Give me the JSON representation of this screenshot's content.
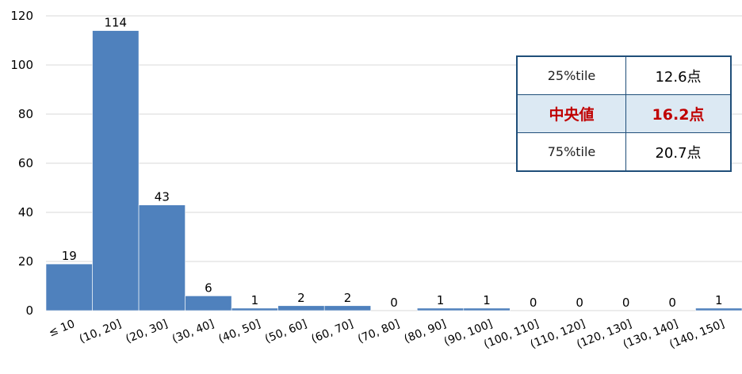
{
  "chart_data": {
    "type": "bar",
    "categories": [
      "≤ 10",
      "(10, 20]",
      "(20, 30]",
      "(30, 40]",
      "(40, 50]",
      "(50, 60]",
      "(60, 70]",
      "(70, 80]",
      "(80, 90]",
      "(90, 100]",
      "(100, 110]",
      "(110, 120]",
      "(120, 130]",
      "(130, 140]",
      "(140, 150]"
    ],
    "values": [
      19,
      114,
      43,
      6,
      1,
      2,
      2,
      0,
      1,
      1,
      0,
      0,
      0,
      0,
      1
    ],
    "ylim": [
      0,
      120
    ],
    "yticks": [
      0,
      20,
      40,
      60,
      80,
      100,
      120
    ],
    "grid": true,
    "bar_color": "#4f81bd"
  },
  "stats_table": {
    "rows": [
      {
        "label": "25%tile",
        "value": "12.6点"
      },
      {
        "label": "中央値",
        "value": "16.2点"
      },
      {
        "label": "75%tile",
        "value": "20.7点"
      }
    ],
    "highlight_color": "#c00000",
    "highlight_bg": "#dce9f3"
  }
}
